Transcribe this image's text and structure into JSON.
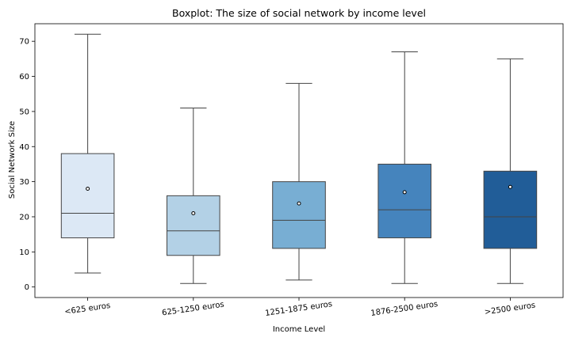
{
  "chart_data": {
    "type": "boxplot",
    "title": "Boxplot: The size of social network by income level",
    "xlabel": "Income Level",
    "ylabel": "Social Network Size",
    "ylim": [
      -3,
      75
    ],
    "yticks": [
      0,
      10,
      20,
      30,
      40,
      50,
      60,
      70
    ],
    "grid": false,
    "legend": "none",
    "categories": [
      "<625 euros",
      "625-1250 euros",
      "1251-1875 euros",
      "1876-2500 euros",
      ">2500 euros"
    ],
    "boxes": [
      {
        "whisker_low": 4,
        "q1": 14,
        "median": 21,
        "q3": 38,
        "whisker_high": 72,
        "mean": 28,
        "color": "#dce8f5"
      },
      {
        "whisker_low": 1,
        "q1": 9,
        "median": 16,
        "q3": 26,
        "whisker_high": 51,
        "mean": 21,
        "color": "#b3d1e6"
      },
      {
        "whisker_low": 2,
        "q1": 11,
        "median": 19,
        "q3": 30,
        "whisker_high": 58,
        "mean": 23.8,
        "color": "#78aed3"
      },
      {
        "whisker_low": 1,
        "q1": 14,
        "median": 22,
        "q3": 35,
        "whisker_high": 67,
        "mean": 27,
        "color": "#4584bd"
      },
      {
        "whisker_low": 1,
        "q1": 11,
        "median": 20,
        "q3": 33,
        "whisker_high": 65,
        "mean": 28.5,
        "color": "#215d98"
      }
    ]
  }
}
